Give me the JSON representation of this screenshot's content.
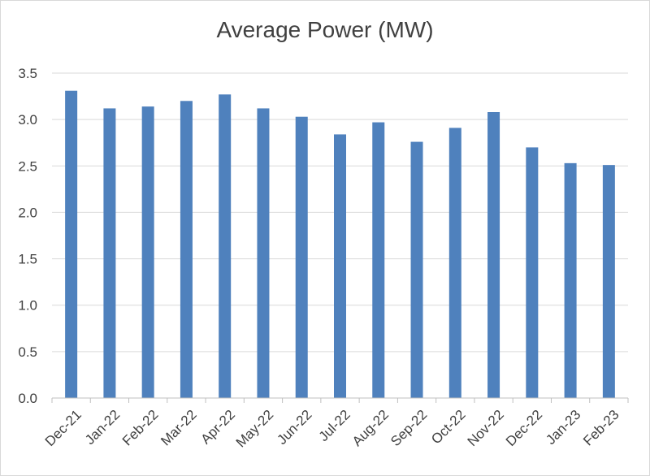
{
  "chart_data": {
    "type": "bar",
    "title": "Average Power (MW)",
    "xlabel": "",
    "ylabel": "",
    "categories": [
      "Dec-21",
      "Jan-22",
      "Feb-22",
      "Mar-22",
      "Apr-22",
      "May-22",
      "Jun-22",
      "Jul-22",
      "Aug-22",
      "Sep-22",
      "Oct-22",
      "Nov-22",
      "Dec-22",
      "Jan-23",
      "Feb-23"
    ],
    "values": [
      3.31,
      3.12,
      3.14,
      3.2,
      3.27,
      3.12,
      3.03,
      2.84,
      2.97,
      2.76,
      2.91,
      3.08,
      2.7,
      2.53,
      2.51
    ],
    "ylim": [
      0,
      3.5
    ],
    "yticks": [
      "0.0",
      "0.5",
      "1.0",
      "1.5",
      "2.0",
      "2.5",
      "3.0",
      "3.5"
    ],
    "grid": true,
    "legend": "none",
    "colors": {
      "bar": "#4f81bd",
      "grid": "#d9d9d9",
      "axis": "#bfbfbf",
      "text": "#404040"
    }
  }
}
